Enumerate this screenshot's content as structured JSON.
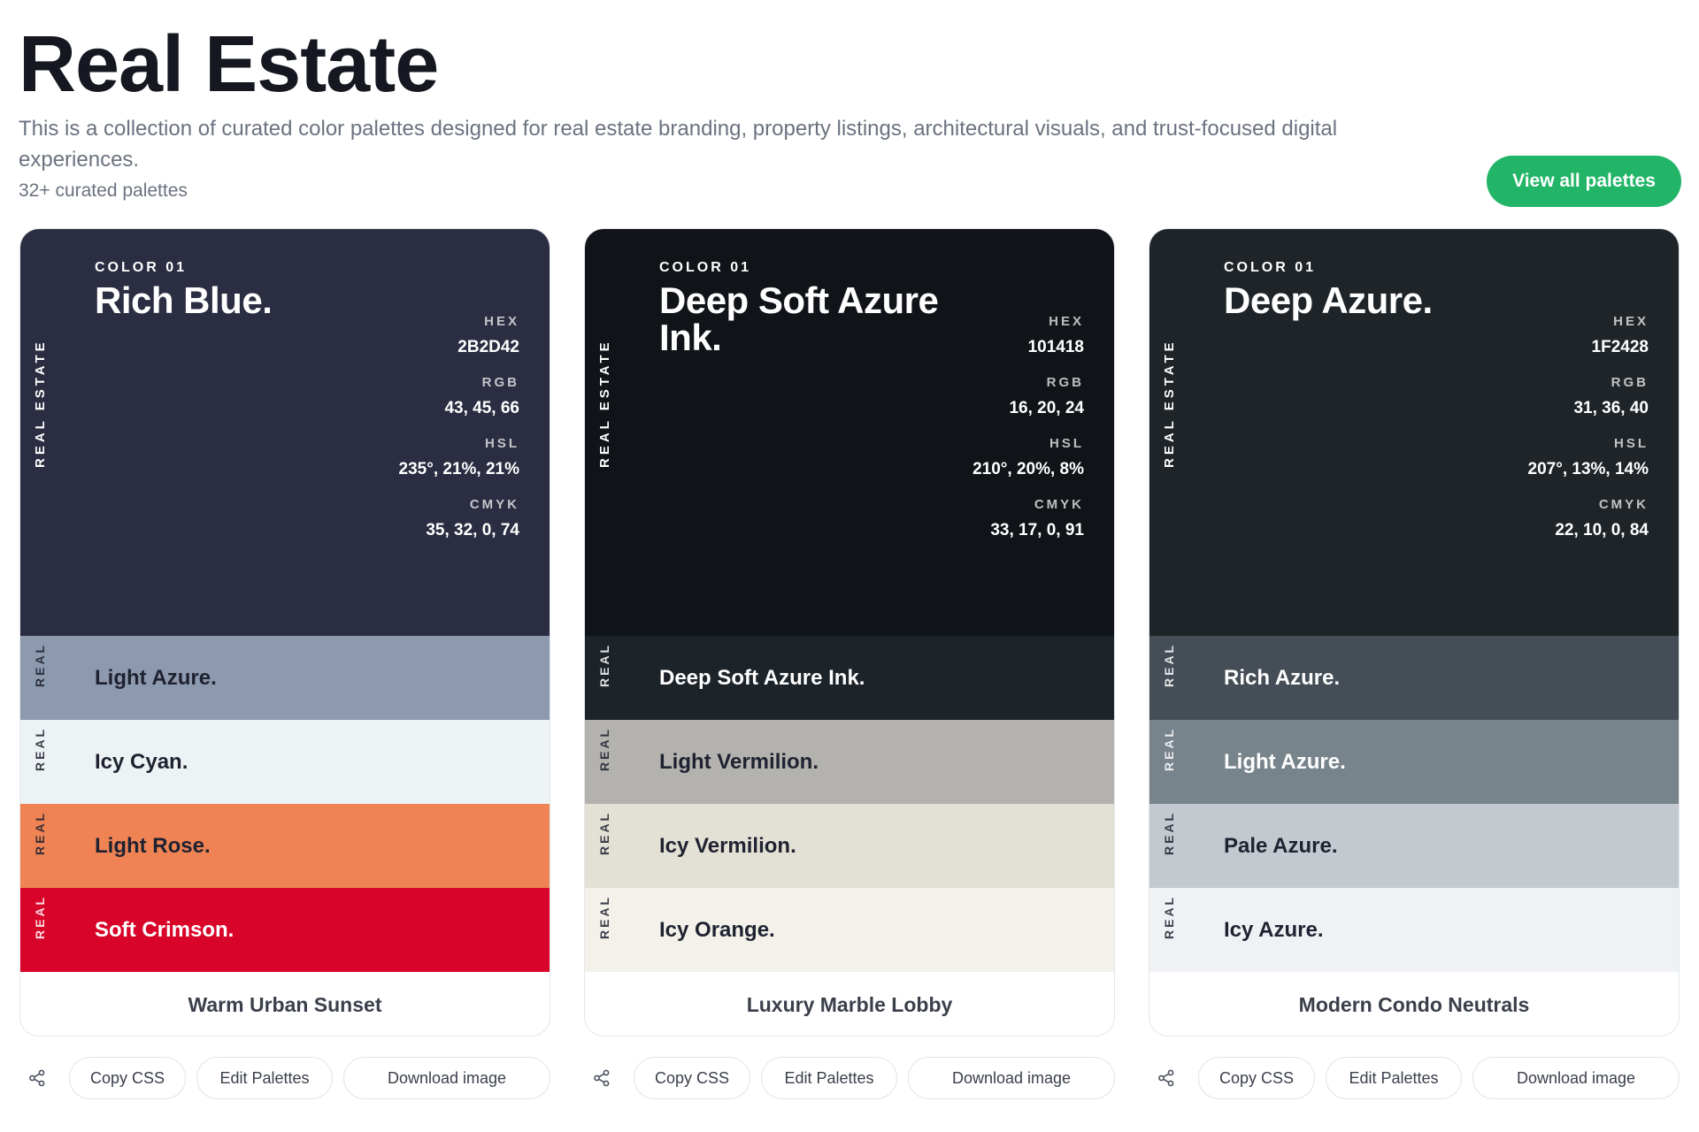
{
  "page": {
    "title": "Real Estate",
    "description": "This is a collection of curated color palettes designed for real estate branding, property listings, architectural visuals, and trust-focused digital experiences.",
    "count": "32+ curated palettes",
    "view_all_label": "View all palettes",
    "accent": "#22B567"
  },
  "palettes": [
    {
      "name": "Warm Urban Sunset",
      "side_label": "REAL ESTATE",
      "primary": {
        "index": "COLOR 01",
        "name": "Rich Blue.",
        "bg": "#2B2D42",
        "text": "#FFFFFF",
        "specs": [
          {
            "key": "HEX",
            "value": "2B2D42"
          },
          {
            "key": "RGB",
            "value": "43, 45, 66"
          },
          {
            "key": "HSL",
            "value": "235°, 21%, 21%"
          },
          {
            "key": "CMYK",
            "value": "35, 32, 0, 74"
          }
        ]
      },
      "swatches": [
        {
          "tag": "REAL",
          "name": "Light Azure.",
          "bg": "#8D99AE",
          "text": "#1F2230"
        },
        {
          "tag": "REAL",
          "name": "Icy Cyan.",
          "bg": "#EDF2F4",
          "text": "#1F2230"
        },
        {
          "tag": "REAL",
          "name": "Light Rose.",
          "bg": "#EF8354",
          "text": "#1F2230"
        },
        {
          "tag": "REAL",
          "name": "Soft Crimson.",
          "bg": "#D90429",
          "text": "#FFFFFF"
        }
      ]
    },
    {
      "name": "Luxury Marble Lobby",
      "side_label": "REAL ESTATE",
      "primary": {
        "index": "COLOR 01",
        "name": "Deep Soft Azure Ink.",
        "bg": "#101418",
        "text": "#FFFFFF",
        "specs": [
          {
            "key": "HEX",
            "value": "101418"
          },
          {
            "key": "RGB",
            "value": "16, 20, 24"
          },
          {
            "key": "HSL",
            "value": "210°, 20%, 8%"
          },
          {
            "key": "CMYK",
            "value": "33, 17, 0, 91"
          }
        ]
      },
      "swatches": [
        {
          "tag": "REAL",
          "name": "Deep Soft Azure Ink.",
          "bg": "#1C2329",
          "text": "#FFFFFF"
        },
        {
          "tag": "REAL",
          "name": "Light Vermilion.",
          "bg": "#B3B2AF",
          "text": "#1F2230"
        },
        {
          "tag": "REAL",
          "name": "Icy Vermilion.",
          "bg": "#E3E0D5",
          "text": "#1F2230"
        },
        {
          "tag": "REAL",
          "name": "Icy Orange.",
          "bg": "#F3F1EA",
          "text": "#1F2230"
        }
      ]
    },
    {
      "name": "Modern Condo Neutrals",
      "side_label": "REAL ESTATE",
      "primary": {
        "index": "COLOR 01",
        "name": "Deep Azure.",
        "bg": "#1F2428",
        "text": "#FFFFFF",
        "specs": [
          {
            "key": "HEX",
            "value": "1F2428"
          },
          {
            "key": "RGB",
            "value": "31, 36, 40"
          },
          {
            "key": "HSL",
            "value": "207°, 13%, 14%"
          },
          {
            "key": "CMYK",
            "value": "22, 10, 0, 84"
          }
        ]
      },
      "swatches": [
        {
          "tag": "REAL",
          "name": "Rich Azure.",
          "bg": "#454E56",
          "text": "#FFFFFF"
        },
        {
          "tag": "REAL",
          "name": "Light Azure.",
          "bg": "#78848C",
          "text": "#FFFFFF"
        },
        {
          "tag": "REAL",
          "name": "Pale Azure.",
          "bg": "#C2C9CF",
          "text": "#1F2230"
        },
        {
          "tag": "REAL",
          "name": "Icy Azure.",
          "bg": "#EFF2F5",
          "text": "#1F2230"
        }
      ]
    }
  ],
  "actions": {
    "share_icon": "share-icon",
    "copy_css": "Copy CSS",
    "edit": "Edit Palettes",
    "download": "Download image"
  }
}
